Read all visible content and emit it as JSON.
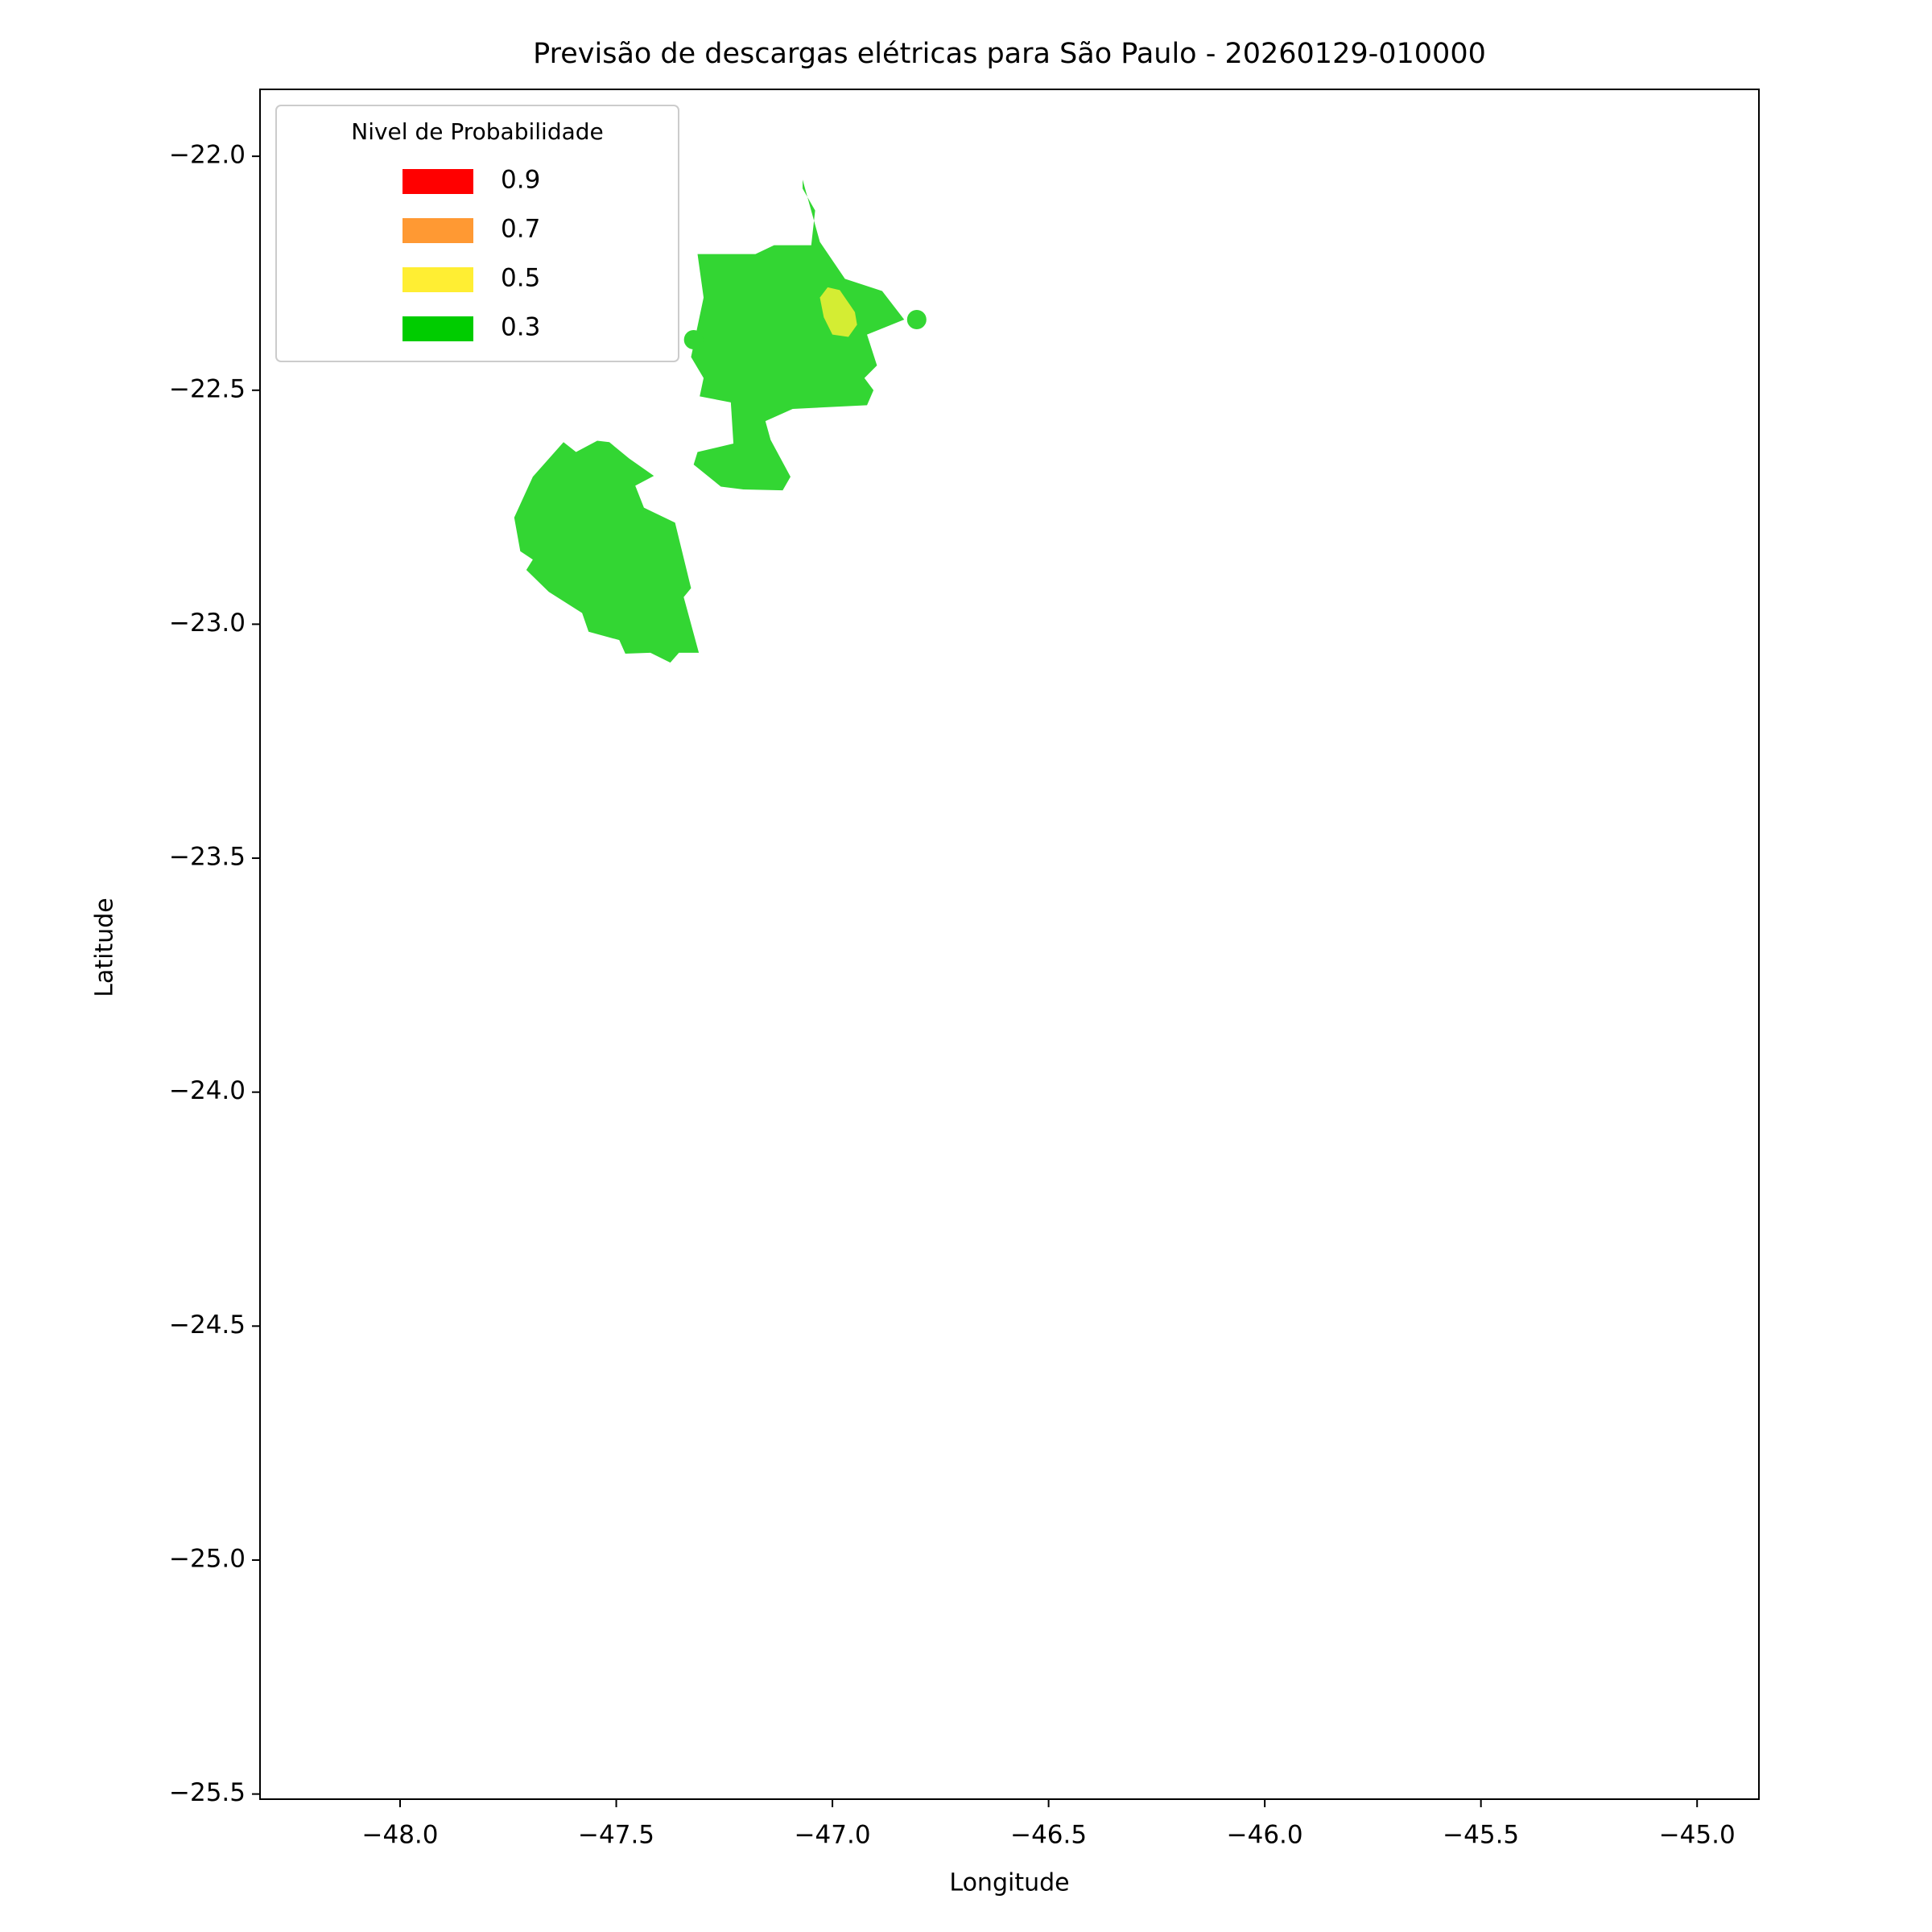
{
  "chart_data": {
    "type": "contour",
    "title": "Previsão de descargas elétricas para São Paulo - 20260129-010000",
    "xlabel": "Longitude",
    "ylabel": "Latitude",
    "xlim": [
      -48.324,
      -44.857
    ],
    "ylim": [
      -25.511,
      -21.857
    ],
    "xticks": [
      {
        "value": -48,
        "label": "−48.0"
      },
      {
        "value": -47.5,
        "label": "−47.5"
      },
      {
        "value": -47,
        "label": "−47.0"
      },
      {
        "value": -46.5,
        "label": "−46.5"
      },
      {
        "value": -46,
        "label": "−46.0"
      },
      {
        "value": -45.5,
        "label": "−45.5"
      },
      {
        "value": -45,
        "label": "−45.0"
      }
    ],
    "yticks": [
      {
        "value": -22,
        "label": "−22.0"
      },
      {
        "value": -22.5,
        "label": "−22.5"
      },
      {
        "value": -23,
        "label": "−23.0"
      },
      {
        "value": -23.5,
        "label": "−23.5"
      },
      {
        "value": -24,
        "label": "−24.0"
      },
      {
        "value": -24.5,
        "label": "−24.5"
      },
      {
        "value": -25,
        "label": "−25.0"
      },
      {
        "value": -25.5,
        "label": "−25.5"
      }
    ],
    "legend_title": "Nivel de Probabilidade",
    "legend_position": "upper left",
    "levels": [
      {
        "value": 0.9,
        "color": "#ff0000"
      },
      {
        "value": 0.7,
        "color": "#ff9933"
      },
      {
        "value": 0.5,
        "color": "#ffee33"
      },
      {
        "value": 0.3,
        "color": "#00cc00"
      }
    ],
    "regions": [
      {
        "color": "#33d633",
        "lon": [
          -47.069,
          -47.029,
          -46.971,
          -46.885,
          -46.834,
          -46.92,
          -46.897,
          -46.926,
          -46.905,
          -46.92,
          -47.092,
          -47.155,
          -47.143,
          -47.097,
          -47.115,
          -47.206,
          -47.258,
          -47.321,
          -47.312,
          -47.229,
          -47.235,
          -47.307,
          -47.298,
          -47.327,
          -47.298,
          -47.312,
          -47.178,
          -47.135,
          -47.049,
          -47.04,
          -47.069
        ],
        "lat": [
          -22.05,
          -22.183,
          -22.262,
          -22.288,
          -22.349,
          -22.381,
          -22.447,
          -22.474,
          -22.5,
          -22.532,
          -22.54,
          -22.566,
          -22.606,
          -22.685,
          -22.714,
          -22.712,
          -22.706,
          -22.659,
          -22.632,
          -22.614,
          -22.526,
          -22.513,
          -22.474,
          -22.429,
          -22.302,
          -22.209,
          -22.209,
          -22.19,
          -22.19,
          -22.116,
          -22.069
        ]
      },
      {
        "color": "#d4ed33",
        "lon": [
          -47.029,
          -47.011,
          -46.983,
          -46.948,
          -46.943,
          -46.963,
          -47.0,
          -47.02
        ],
        "lat": [
          -22.302,
          -22.28,
          -22.286,
          -22.333,
          -22.36,
          -22.386,
          -22.381,
          -22.344
        ]
      },
      {
        "color": "#33d633",
        "lon": [
          -47.736,
          -47.693,
          -47.622,
          -47.593,
          -47.544,
          -47.516,
          -47.47,
          -47.413,
          -47.456,
          -47.436,
          -47.364,
          -47.327,
          -47.344,
          -47.309,
          -47.355,
          -47.375,
          -47.421,
          -47.479,
          -47.493,
          -47.564,
          -47.579,
          -47.656,
          -47.708,
          -47.693,
          -47.722
        ],
        "lat": [
          -22.772,
          -22.685,
          -22.611,
          -22.632,
          -22.608,
          -22.611,
          -22.646,
          -22.683,
          -22.704,
          -22.751,
          -22.783,
          -22.923,
          -22.942,
          -23.061,
          -23.061,
          -23.082,
          -23.061,
          -23.063,
          -23.034,
          -23.016,
          -22.976,
          -22.931,
          -22.884,
          -22.862,
          -22.844
        ]
      }
    ],
    "dots": [
      {
        "color": "#33d633",
        "lon": -47.321,
        "lat": -22.392
      },
      {
        "color": "#33d633",
        "lon": -46.805,
        "lat": -22.349
      }
    ]
  }
}
